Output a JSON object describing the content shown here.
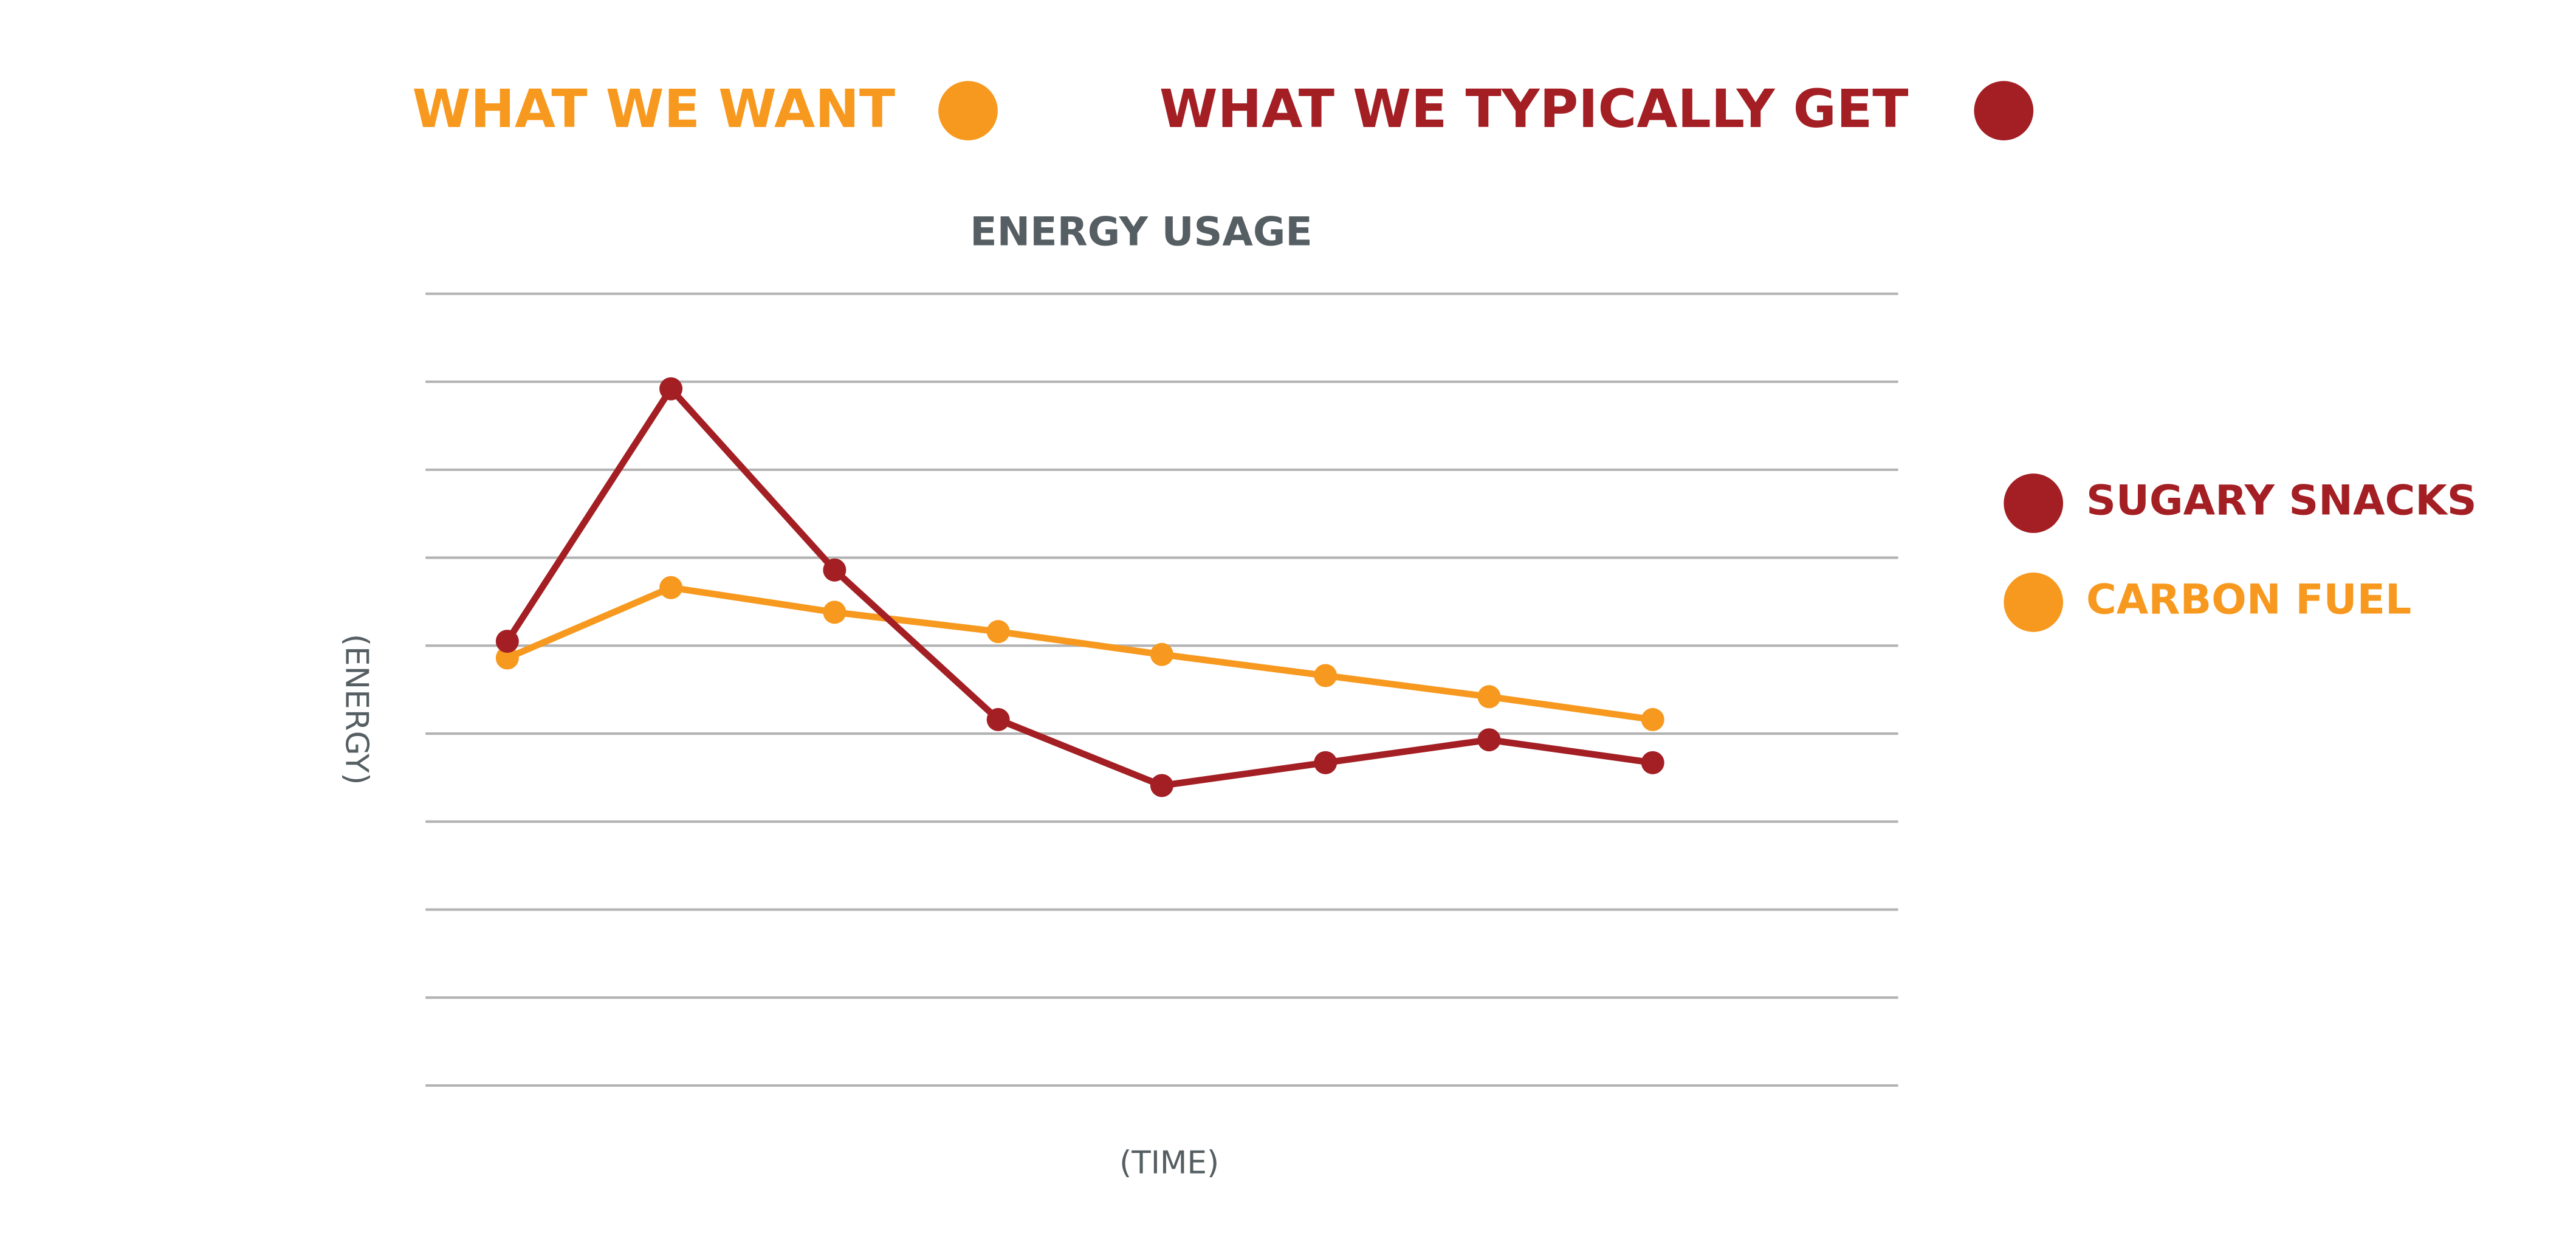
{
  "chart_data": {
    "type": "line",
    "title": "ENERGY USAGE",
    "x_label": "(TIME)",
    "y_label": "(ENERGY)",
    "header_legend": [
      {
        "text": "WHAT WE WANT",
        "color": "#f7991f"
      },
      {
        "text": "WHAT WE TYPICALLY GET",
        "color": "#a31f24"
      }
    ],
    "categories": [
      null,
      null,
      null,
      null,
      null,
      null,
      null,
      null
    ],
    "series": [
      {
        "name": "SUGARY SNACKS",
        "color": "#a31f24",
        "values": [
          5.05,
          7.92,
          5.86,
          4.16,
          3.41,
          3.67,
          3.93,
          3.67
        ]
      },
      {
        "name": "CARBON FUEL",
        "color": "#f7991f",
        "values": [
          4.86,
          5.66,
          5.38,
          5.16,
          4.9,
          4.66,
          4.42,
          4.16
        ]
      }
    ],
    "ylim": [
      0,
      9
    ],
    "yticks": [
      0,
      1,
      2,
      3,
      4,
      5,
      6,
      7,
      8,
      9
    ],
    "grid": true
  }
}
